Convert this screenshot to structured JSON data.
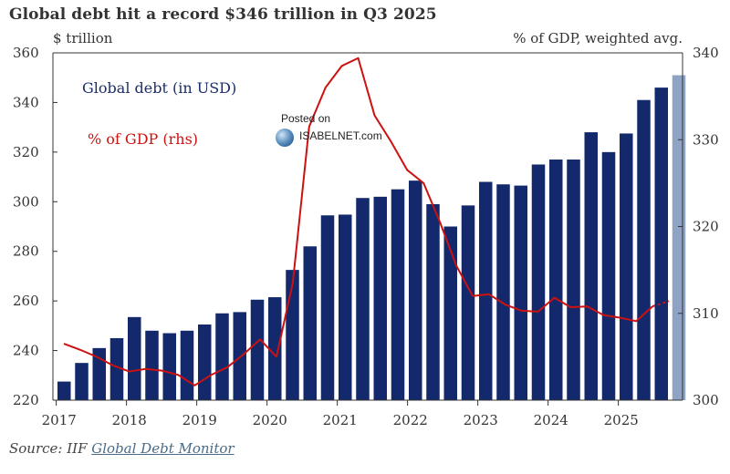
{
  "title": "Global debt hit a record $346 trillion in Q3 2025",
  "left_axis_label": "$ trillion",
  "right_axis_label": "% of GDP, weighted avg.",
  "legend": {
    "debt": "Global debt (in USD)",
    "gdp": "% of GDP (rhs)"
  },
  "watermark": {
    "posted": "Posted on",
    "site": "ISABELNET.com"
  },
  "source": {
    "prefix": "Source: IIF ",
    "link": "Global Debt Monitor"
  },
  "colors": {
    "bar": "#13296b",
    "bar_projection": "#8fa3c4",
    "line": "#cc1111",
    "axis": "#333333"
  },
  "chart_data": {
    "type": "bar",
    "x_ticks": [
      "2017",
      "2018",
      "2019",
      "2020",
      "2021",
      "2022",
      "2023",
      "2024",
      "2025"
    ],
    "left_axis": {
      "min": 220,
      "max": 360,
      "ticks": [
        220,
        240,
        260,
        280,
        300,
        320,
        340,
        360
      ]
    },
    "right_axis": {
      "min": 300,
      "max": 340,
      "ticks": [
        300,
        310,
        320,
        330,
        340
      ]
    },
    "series": [
      {
        "name": "Global debt (in USD)",
        "axis": "left",
        "values": [
          227.5,
          235,
          241,
          245,
          253.5,
          248,
          247,
          248,
          250.5,
          255,
          255.5,
          260.5,
          261.5,
          272.5,
          282,
          294.5,
          294.8,
          301.5,
          302,
          305,
          308.5,
          299,
          290,
          298.5,
          308,
          307,
          306.5,
          315,
          317,
          317,
          328,
          320,
          327.5,
          341,
          346,
          351
        ],
        "projection_last": true
      },
      {
        "name": "% of GDP (rhs)",
        "axis": "right",
        "values": [
          306.5,
          305.8,
          305,
          304,
          303.3,
          303.6,
          303.4,
          302.9,
          301.7,
          302.9,
          303.8,
          305.3,
          307,
          305,
          313.5,
          331.5,
          336,
          338.5,
          339.4,
          332.8,
          329.8,
          326.5,
          325,
          320.5,
          315.5,
          312,
          312.2,
          311,
          310.3,
          310.2,
          311.8,
          310.7,
          310.8,
          309.8,
          309.5,
          309.1,
          310.8,
          311.4
        ],
        "dashed_last": true
      }
    ]
  }
}
